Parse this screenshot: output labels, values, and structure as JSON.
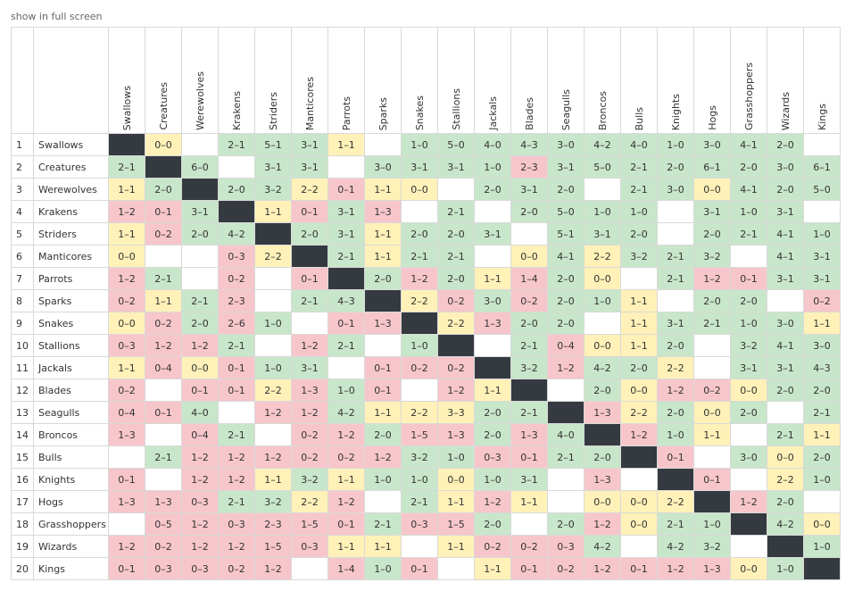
{
  "fullscreen_link": "show in full screen",
  "colors": {
    "win": "#c8e6c9",
    "draw": "#fff1b8",
    "loss": "#f7c6cb",
    "self": "#343a40",
    "border": "#d9d9d9"
  },
  "teams": [
    "Swallows",
    "Creatures",
    "Werewolves",
    "Krakens",
    "Striders",
    "Manticores",
    "Parrots",
    "Sparks",
    "Snakes",
    "Stallions",
    "Jackals",
    "Blades",
    "Seagulls",
    "Broncos",
    "Bulls",
    "Knights",
    "Hogs",
    "Grasshoppers",
    "Wizards",
    "Kings"
  ],
  "rows": [
    {
      "num": "1",
      "name": "Swallows",
      "cells": [
        "X",
        "0–0",
        "",
        "2–1",
        "5–1",
        "3–1",
        "1–1",
        "",
        "1–0",
        "5–0",
        "4–0",
        "4–3",
        "3–0",
        "4–2",
        "4–0",
        "1–0",
        "3–0",
        "4–1",
        "2–0",
        ""
      ]
    },
    {
      "num": "2",
      "name": "Creatures",
      "cells": [
        "2–1",
        "X",
        "6–0",
        "",
        "3–1",
        "3–1",
        "",
        "3–0",
        "3–1",
        "3–1",
        "1–0",
        "2–3",
        "3–1",
        "5–0",
        "2–1",
        "2–0",
        "6–1",
        "2–0",
        "3–0",
        "6–1"
      ]
    },
    {
      "num": "3",
      "name": "Werewolves",
      "cells": [
        "1–1",
        "2–0",
        "X",
        "2–0",
        "3–2",
        "2–2",
        "0–1",
        "1–1",
        "0–0",
        "",
        "2–0",
        "3–1",
        "2–0",
        "",
        "2–1",
        "3–0",
        "0–0",
        "4–1",
        "2–0",
        "5–0"
      ]
    },
    {
      "num": "4",
      "name": "Krakens",
      "cells": [
        "1–2",
        "0–1",
        "3–1",
        "X",
        "1–1",
        "0–1",
        "3–1",
        "1–3",
        "",
        "2–1",
        "",
        "2–0",
        "5–0",
        "1–0",
        "1–0",
        "",
        "3–1",
        "1–0",
        "3–1",
        ""
      ]
    },
    {
      "num": "5",
      "name": "Striders",
      "cells": [
        "1–1",
        "0–2",
        "2–0",
        "4–2",
        "X",
        "2–0",
        "3–1",
        "1–1",
        "2–0",
        "2–0",
        "3–1",
        "",
        "5–1",
        "3–1",
        "2–0",
        "",
        "2–0",
        "2–1",
        "4–1",
        "1–0"
      ]
    },
    {
      "num": "6",
      "name": "Manticores",
      "cells": [
        "0–0",
        "",
        "",
        "0–3",
        "2–2",
        "X",
        "2–1",
        "1–1",
        "2–1",
        "2–1",
        "",
        "0–0",
        "4–1",
        "2–2",
        "3–2",
        "2–1",
        "3–2",
        "",
        "4–1",
        "3–1"
      ]
    },
    {
      "num": "7",
      "name": "Parrots",
      "cells": [
        "1–2",
        "2–1",
        "",
        "0–2",
        "",
        "0–1",
        "X",
        "2–0",
        "1–2",
        "2–0",
        "1–1",
        "1–4",
        "2–0",
        "0–0",
        "",
        "2–1",
        "1–2",
        "0–1",
        "3–1",
        "3–1"
      ]
    },
    {
      "num": "8",
      "name": "Sparks",
      "cells": [
        "0–2",
        "1–1",
        "2–1",
        "2–3",
        "",
        "2–1",
        "4–3",
        "X",
        "2–2",
        "0–2",
        "3–0",
        "0–2",
        "2–0",
        "1–0",
        "1–1",
        "",
        "2–0",
        "2–0",
        "",
        "0–2"
      ]
    },
    {
      "num": "9",
      "name": "Snakes",
      "cells": [
        "0–0",
        "0–2",
        "2–0",
        "2–6",
        "1–0",
        "",
        "0–1",
        "1–3",
        "X",
        "2–2",
        "1–3",
        "2–0",
        "2–0",
        "",
        "1–1",
        "3–1",
        "2–1",
        "1–0",
        "3–0",
        "1–1"
      ]
    },
    {
      "num": "10",
      "name": "Stallions",
      "cells": [
        "0–3",
        "1–2",
        "1–2",
        "2–1",
        "",
        "1–2",
        "2–1",
        "",
        "1–0",
        "X",
        "",
        "2–1",
        "0–4",
        "0–0",
        "1–1",
        "2–0",
        "",
        "3–2",
        "4–1",
        "3–0"
      ]
    },
    {
      "num": "11",
      "name": "Jackals",
      "cells": [
        "1–1",
        "0–4",
        "0–0",
        "0–1",
        "1–0",
        "3–1",
        "",
        "0–1",
        "0–2",
        "0–2",
        "X",
        "3–2",
        "1–2",
        "4–2",
        "2–0",
        "2–2",
        "",
        "3–1",
        "3–1",
        "4–3"
      ]
    },
    {
      "num": "12",
      "name": "Blades",
      "cells": [
        "0–2",
        "",
        "0–1",
        "0–1",
        "2–2",
        "1–3",
        "1–0",
        "0–1",
        "",
        "1–2",
        "1–1",
        "X",
        "",
        "2–0",
        "0–0",
        "1–2",
        "0–2",
        "0–0",
        "2–0",
        "2–0"
      ]
    },
    {
      "num": "13",
      "name": "Seagulls",
      "cells": [
        "0–4",
        "0–1",
        "4–0",
        "",
        "1–2",
        "1–2",
        "4–2",
        "1–1",
        "2–2",
        "3–3",
        "2–0",
        "2–1",
        "X",
        "1–3",
        "2–2",
        "2–0",
        "0–0",
        "2–0",
        "",
        "2–1"
      ]
    },
    {
      "num": "14",
      "name": "Broncos",
      "cells": [
        "1–3",
        "",
        "0–4",
        "2–1",
        "",
        "0–2",
        "1–2",
        "2–0",
        "1–5",
        "1–3",
        "2–0",
        "1–3",
        "4–0",
        "X",
        "1–2",
        "1–0",
        "1–1",
        "",
        "2–1",
        "1–1"
      ]
    },
    {
      "num": "15",
      "name": "Bulls",
      "cells": [
        "",
        "2–1",
        "1–2",
        "1–2",
        "1–2",
        "0–2",
        "0–2",
        "1–2",
        "3–2",
        "1–0",
        "0–3",
        "0–1",
        "2–1",
        "2–0",
        "X",
        "0–1",
        "",
        "3–0",
        "0–0",
        "2–0"
      ]
    },
    {
      "num": "16",
      "name": "Knights",
      "cells": [
        "0–1",
        "",
        "1–2",
        "1–2",
        "1–1",
        "3–2",
        "1–1",
        "1–0",
        "1–0",
        "0–0",
        "1–0",
        "3–1",
        "",
        "1–3",
        "",
        "X",
        "0–1",
        "",
        "2–2",
        "1–0"
      ]
    },
    {
      "num": "17",
      "name": "Hogs",
      "cells": [
        "1–3",
        "1–3",
        "0–3",
        "2–1",
        "3–2",
        "2–2",
        "1–2",
        "",
        "2–1",
        "1–1",
        "1–2",
        "1–1",
        "",
        "0–0",
        "0–0",
        "2–2",
        "X",
        "1–2",
        "2–0",
        ""
      ]
    },
    {
      "num": "18",
      "name": "Grasshoppers",
      "cells": [
        "",
        "0–5",
        "1–2",
        "0–3",
        "2–3",
        "1–5",
        "0–1",
        "2–1",
        "0–3",
        "1–5",
        "2–0",
        "",
        "2–0",
        "1–2",
        "0–0",
        "2–1",
        "1–0",
        "X",
        "4–2",
        "0–0"
      ]
    },
    {
      "num": "19",
      "name": "Wizards",
      "cells": [
        "1–2",
        "0–2",
        "1–2",
        "1–2",
        "1–5",
        "0–3",
        "1–1",
        "1–1",
        "",
        "1–1",
        "0–2",
        "0–2",
        "0–3",
        "4–2",
        "",
        "4–2",
        "3–2",
        "",
        "X",
        "1–0"
      ]
    },
    {
      "num": "20",
      "name": "Kings",
      "cells": [
        "0–1",
        "0–3",
        "0–3",
        "0–2",
        "1–2",
        "",
        "1–4",
        "1–0",
        "0–1",
        "",
        "1–1",
        "0–1",
        "0–2",
        "1–2",
        "0–1",
        "1–2",
        "1–3",
        "0–0",
        "1–0",
        "X"
      ]
    }
  ]
}
